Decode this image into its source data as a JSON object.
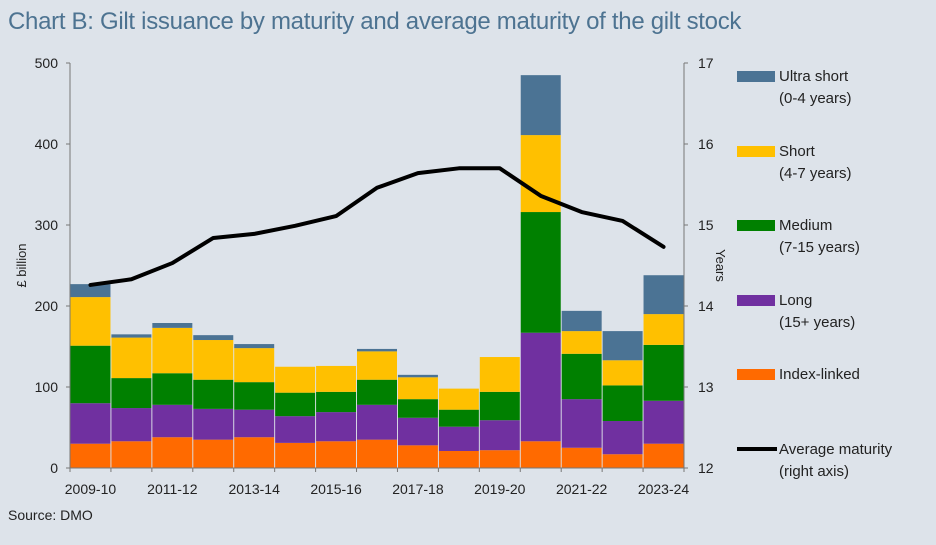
{
  "title": "Chart B: Gilt issuance by maturity and average maturity of the gilt stock",
  "source": "Source: DMO",
  "chart_data": {
    "type": "bar",
    "stacked": true,
    "title": "Chart B: Gilt issuance by maturity and average maturity of the gilt stock",
    "xlabel": "",
    "ylabel": "£ billion",
    "y2label": "Years",
    "ylim": [
      0,
      500
    ],
    "y2lim": [
      12,
      17
    ],
    "yticks": [
      0,
      100,
      200,
      300,
      400,
      500
    ],
    "y2ticks": [
      12,
      13,
      14,
      15,
      16,
      17
    ],
    "categories": [
      "2009-10",
      "2010-11",
      "2011-12",
      "2012-13",
      "2013-14",
      "2014-15",
      "2015-16",
      "2016-17",
      "2017-18",
      "2018-19",
      "2019-20",
      "2020-21",
      "2021-22",
      "2022-23",
      "2023-24"
    ],
    "xtick_labels": [
      "2009-10",
      "",
      "2011-12",
      "",
      "2013-14",
      "",
      "2015-16",
      "",
      "2017-18",
      "",
      "2019-20",
      "",
      "2021-22",
      "",
      "2023-24"
    ],
    "series": [
      {
        "name": "Index-linked",
        "color": "#ff6a00",
        "values": [
          30,
          33,
          38,
          35,
          38,
          31,
          33,
          35,
          28,
          21,
          22,
          33,
          25,
          17,
          30
        ]
      },
      {
        "name": "Long (15+ years)",
        "color": "#7030a0",
        "values": [
          50,
          41,
          40,
          38,
          34,
          33,
          36,
          43,
          34,
          30,
          37,
          134,
          60,
          41,
          53
        ]
      },
      {
        "name": "Medium (7-15 years)",
        "color": "#008000",
        "values": [
          71,
          37,
          39,
          36,
          34,
          29,
          25,
          31,
          23,
          21,
          35,
          149,
          56,
          44,
          69
        ]
      },
      {
        "name": "Short (4-7 years)",
        "color": "#ffc000",
        "values": [
          60,
          50,
          56,
          49,
          42,
          32,
          32,
          35,
          27,
          26,
          43,
          95,
          28,
          31,
          38
        ]
      },
      {
        "name": "Ultra short (0-4 years)",
        "color": "#4b7394",
        "values": [
          16,
          4,
          6,
          6,
          5,
          0,
          0,
          3,
          3,
          0,
          0,
          74,
          25,
          36,
          48
        ]
      }
    ],
    "line_series": {
      "name": "Average maturity (right axis)",
      "color": "#000000",
      "axis": "right",
      "values": [
        14.26,
        14.33,
        14.53,
        14.84,
        14.89,
        14.99,
        15.11,
        15.46,
        15.64,
        15.7,
        15.7,
        15.36,
        15.16,
        15.05,
        14.73
      ]
    },
    "legend": {
      "placement": "right",
      "items": [
        {
          "line1": "Ultra short",
          "line2": "(0-4 years)",
          "color": "#4b7394",
          "kind": "box"
        },
        {
          "line1": "Short",
          "line2": "(4-7 years)",
          "color": "#ffc000",
          "kind": "box"
        },
        {
          "line1": "Medium",
          "line2": "(7-15 years)",
          "color": "#008000",
          "kind": "box"
        },
        {
          "line1": "Long",
          "line2": "(15+ years)",
          "color": "#7030a0",
          "kind": "box"
        },
        {
          "line1": "Index-linked",
          "line2": "",
          "color": "#ff6a00",
          "kind": "box"
        },
        {
          "line1": "Average maturity",
          "line2": "(right axis)",
          "color": "#000000",
          "kind": "line"
        }
      ]
    },
    "grid": false
  }
}
